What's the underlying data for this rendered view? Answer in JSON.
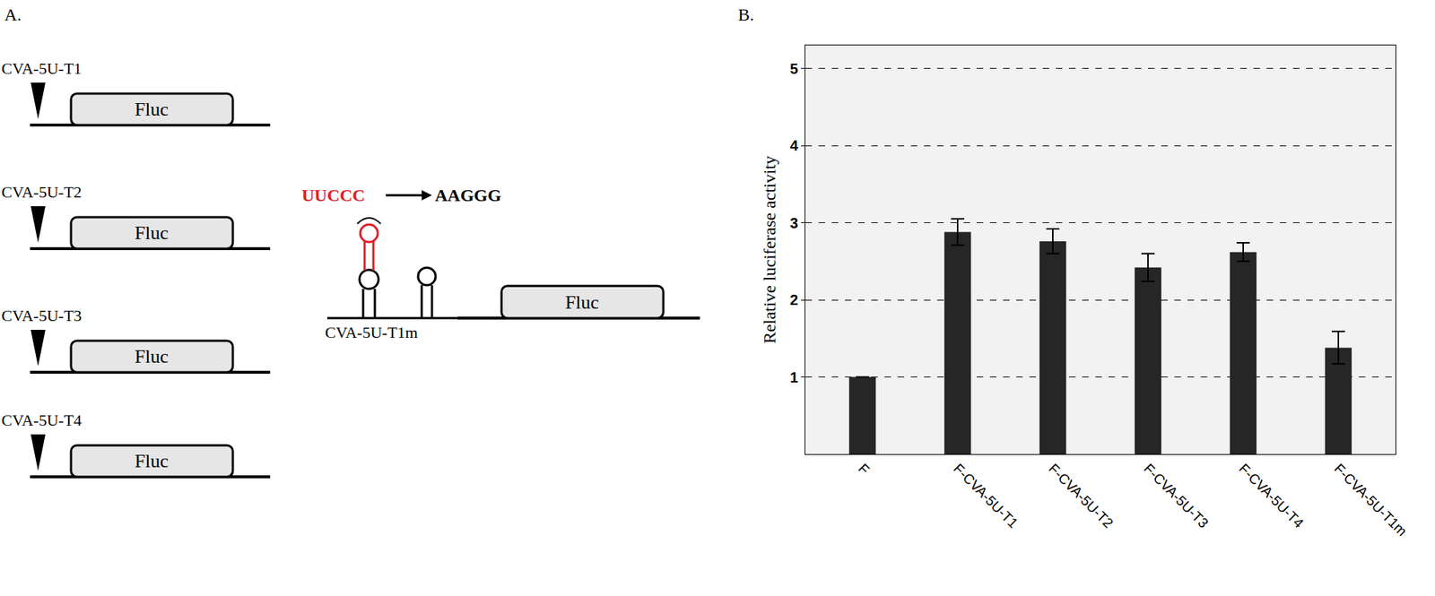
{
  "panel_labels": [
    "A.",
    "B."
  ],
  "diagram": {
    "constructs": [
      "CVA-5U-T1",
      "CVA-5U-T2",
      "CVA-5U-T3",
      "CVA-5U-T4"
    ],
    "reporter": "Fluc",
    "mutant": {
      "name": "CVA-5U-T1m",
      "from": "UUCCC",
      "to": "AAGGG"
    }
  },
  "chart_data": {
    "type": "bar",
    "categories": [
      "F",
      "F-CVA-5U-T1",
      "F-CVA-5U-T2",
      "F-CVA-5U-T3",
      "F-CVA-5U-T4",
      "F-CVA-5U-T1m"
    ],
    "values": [
      1,
      2.88,
      2.76,
      2.42,
      2.62,
      1.38
    ],
    "errors": [
      null,
      0.17,
      0.16,
      0.18,
      0.12,
      0.21
    ],
    "color": "#262626",
    "ylabel": "Relative luciferase activity",
    "ylim": [
      0,
      5.3
    ],
    "yticks": [
      1,
      2,
      3,
      4,
      5
    ],
    "grid": true
  }
}
